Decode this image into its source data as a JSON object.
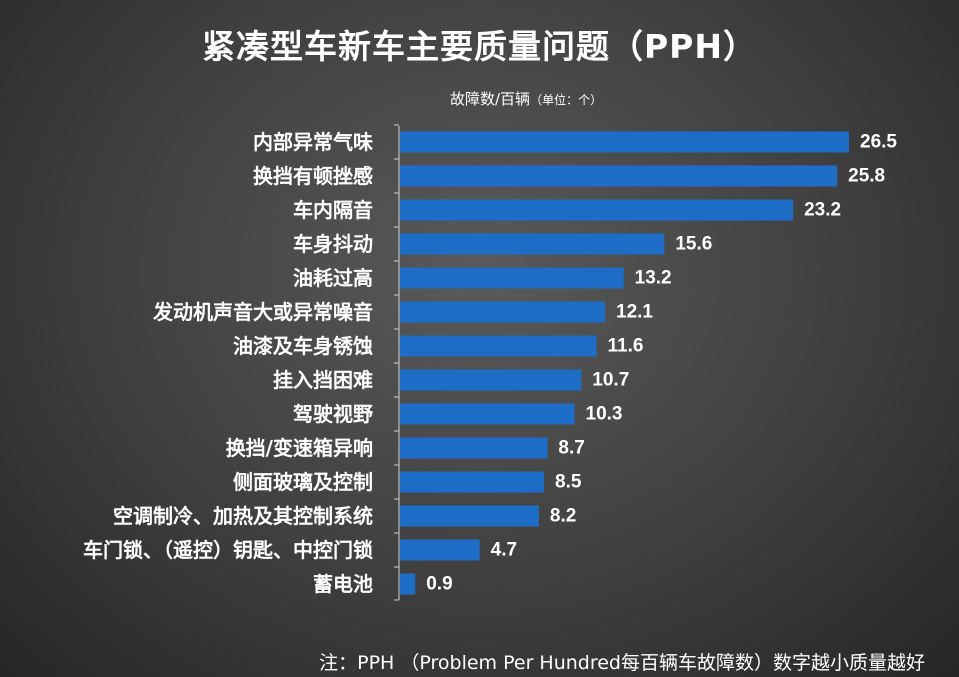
{
  "chart_data": {
    "type": "bar",
    "orientation": "horizontal",
    "title": "紧凑型车新车主要质量问题（PPH）",
    "unit_label": "故障数/百辆",
    "unit_note": "（单位：个）",
    "categories": [
      "内部异常气味",
      "换挡有顿挫感",
      "车内隔音",
      "车身抖动",
      "油耗过高",
      "发动机声音大或异常噪音",
      "油漆及车身锈蚀",
      "挂入挡困难",
      "驾驶视野",
      "换挡/变速箱异响",
      "侧面玻璃及控制",
      "空调制冷、加热及其控制系统",
      "车门锁、（遥控）钥匙、中控门锁",
      "蓄电池"
    ],
    "values": [
      26.5,
      25.8,
      23.2,
      15.6,
      13.2,
      12.1,
      11.6,
      10.7,
      10.3,
      8.7,
      8.5,
      8.2,
      4.7,
      0.9
    ],
    "value_labels": [
      "26.5",
      "25.8",
      "23.2",
      "15.6",
      "13.2",
      "12.1",
      "11.6",
      "10.7",
      "10.3",
      "8.7",
      "8.5",
      "8.2",
      "4.7",
      "0.9"
    ],
    "xlim": [
      0,
      26.5
    ],
    "bar_color": "#1e6ec8",
    "grid": false,
    "legend": "none",
    "note": "注：PPH （Problem Per Hundred每百辆车故障数）数字越小质量越好"
  }
}
